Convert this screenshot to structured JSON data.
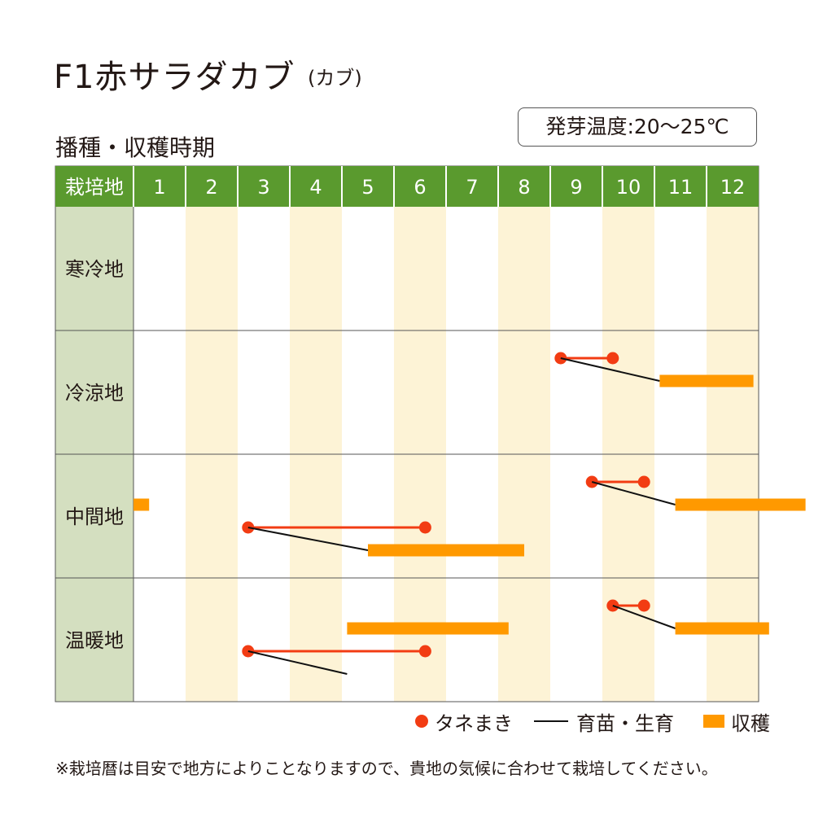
{
  "title": "F1赤サラダカブ",
  "subtitle": "(カブ)",
  "section_title": "播種・収穫時期",
  "germination": "発芽温度:20〜25℃",
  "legend": {
    "sowing": "タネまき",
    "growing": "育苗・生育",
    "harvest": "収穫"
  },
  "note": "※栽培暦は目安で地方によりことなりますので、貴地の気候に合わせて栽培してください。",
  "colors": {
    "header": "#5a9a2e",
    "region": "#d4dfc0",
    "stripe": "#fdf3d6",
    "sowing": "#f23c13",
    "growing": "#111111",
    "harvest": "#ff9900"
  },
  "chart_data": {
    "type": "table",
    "header_label": "栽培地",
    "months": [
      "1",
      "2",
      "3",
      "4",
      "5",
      "6",
      "7",
      "8",
      "9",
      "10",
      "11",
      "12"
    ],
    "regions": [
      {
        "name": "寒冷地",
        "sowing": [],
        "harvest": [],
        "links": []
      },
      {
        "name": "冷涼地",
        "sowing": [
          [
            8.2,
            9.2
          ]
        ],
        "harvest": [
          [
            10.1,
            11.9
          ]
        ],
        "links": [
          [
            8.2,
            10.1
          ]
        ]
      },
      {
        "name": "中間地",
        "sowing": [
          [
            8.8,
            9.8
          ],
          [
            2.2,
            5.6
          ]
        ],
        "harvest": [
          [
            10.4,
            12.9
          ],
          [
            0.0,
            0.3
          ],
          [
            4.5,
            7.5
          ]
        ],
        "links": [
          [
            8.8,
            10.4
          ],
          [
            2.2,
            4.5
          ]
        ]
      },
      {
        "name": "温暖地",
        "sowing": [
          [
            9.2,
            9.8
          ],
          [
            2.2,
            5.6
          ]
        ],
        "harvest": [
          [
            10.4,
            12.2
          ],
          [
            4.1,
            7.2
          ]
        ],
        "links": [
          [
            9.2,
            10.4
          ],
          [
            2.2,
            4.1
          ]
        ]
      }
    ]
  }
}
